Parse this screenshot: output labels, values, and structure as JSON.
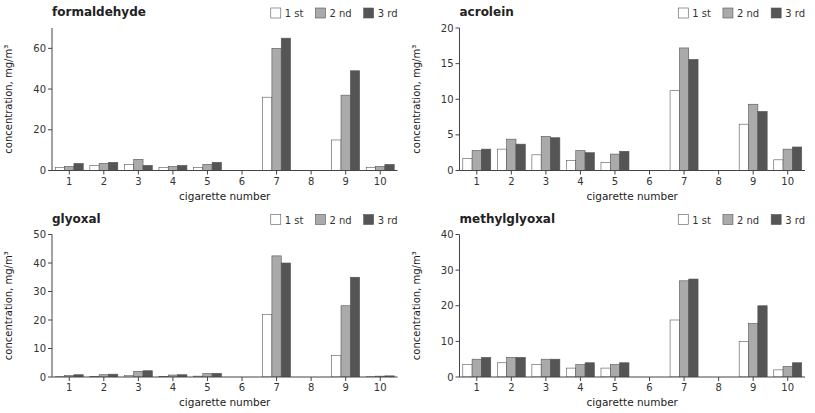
{
  "chart_data": [
    {
      "type": "bar",
      "title": "formaldehyde",
      "categories": [
        1,
        2,
        3,
        4,
        5,
        6,
        7,
        8,
        9,
        10
      ],
      "xlabel": "cigarette number",
      "ylabel": "concentration, mg/m³",
      "ylim": [
        0,
        70
      ],
      "yticks": [
        0,
        20,
        40,
        60
      ],
      "legend": "upper right",
      "series": [
        {
          "name": "1 st",
          "color": "#ffffff",
          "values": [
            1.5,
            2.5,
            3.0,
            1.5,
            1.5,
            0,
            36,
            0,
            15,
            1.5
          ]
        },
        {
          "name": "2 nd",
          "color": "#aaaaaa",
          "values": [
            2.0,
            3.5,
            5.5,
            2.0,
            3.0,
            0,
            60,
            0,
            37,
            2.0
          ]
        },
        {
          "name": "3 rd",
          "color": "#555555",
          "values": [
            3.5,
            4.0,
            2.5,
            2.5,
            4.0,
            0,
            65,
            0,
            49,
            3.0
          ]
        }
      ]
    },
    {
      "type": "bar",
      "title": "acrolein",
      "categories": [
        1,
        2,
        3,
        4,
        5,
        6,
        7,
        8,
        9,
        10
      ],
      "xlabel": "cigarette number",
      "ylabel": "concentration, mg/m³",
      "ylim": [
        0,
        20
      ],
      "yticks": [
        0,
        5,
        10,
        15,
        20
      ],
      "legend": "upper right",
      "series": [
        {
          "name": "1 st",
          "color": "#ffffff",
          "values": [
            1.7,
            3.0,
            2.2,
            1.4,
            1.1,
            0,
            11.2,
            0,
            6.5,
            1.5
          ]
        },
        {
          "name": "2 nd",
          "color": "#aaaaaa",
          "values": [
            2.8,
            4.4,
            4.8,
            2.8,
            2.3,
            0,
            17.2,
            0,
            9.3,
            3.0
          ]
        },
        {
          "name": "3 rd",
          "color": "#555555",
          "values": [
            3.0,
            3.7,
            4.6,
            2.5,
            2.7,
            0,
            15.6,
            0,
            8.3,
            3.3
          ]
        }
      ]
    },
    {
      "type": "bar",
      "title": "glyoxal",
      "categories": [
        1,
        2,
        3,
        4,
        5,
        6,
        7,
        8,
        9,
        10
      ],
      "xlabel": "cigarette number",
      "ylabel": "concentration, mg/m³",
      "ylim": [
        0,
        50
      ],
      "yticks": [
        0,
        10,
        20,
        30,
        40,
        50
      ],
      "legend": "upper right",
      "series": [
        {
          "name": "1 st",
          "color": "#ffffff",
          "values": [
            0.1,
            0.2,
            0.5,
            0.2,
            0.3,
            0,
            22.0,
            0,
            7.5,
            0.1
          ]
        },
        {
          "name": "2 nd",
          "color": "#aaaaaa",
          "values": [
            0.5,
            0.8,
            2.0,
            0.7,
            1.2,
            0,
            42.5,
            0,
            25.0,
            0.3
          ]
        },
        {
          "name": "3 rd",
          "color": "#555555",
          "values": [
            0.8,
            1.0,
            2.2,
            0.8,
            1.3,
            0,
            40.0,
            0,
            35.0,
            0.4
          ]
        }
      ]
    },
    {
      "type": "bar",
      "title": "methylglyoxal",
      "categories": [
        1,
        2,
        3,
        4,
        5,
        6,
        7,
        8,
        9,
        10
      ],
      "xlabel": "cigarette number",
      "ylabel": "concentration, mg/m³",
      "ylim": [
        0,
        40
      ],
      "yticks": [
        0,
        10,
        20,
        30,
        40
      ],
      "legend": "upper right",
      "series": [
        {
          "name": "1 st",
          "color": "#ffffff",
          "values": [
            3.5,
            4.0,
            3.5,
            2.5,
            2.5,
            0,
            16.0,
            0,
            10.0,
            2.0
          ]
        },
        {
          "name": "2 nd",
          "color": "#aaaaaa",
          "values": [
            5.0,
            5.5,
            5.0,
            3.5,
            3.5,
            0,
            27.0,
            0,
            15.0,
            3.0
          ]
        },
        {
          "name": "3 rd",
          "color": "#555555",
          "values": [
            5.5,
            5.5,
            5.0,
            4.0,
            4.0,
            0,
            27.5,
            0,
            20.0,
            4.0
          ]
        }
      ]
    }
  ]
}
